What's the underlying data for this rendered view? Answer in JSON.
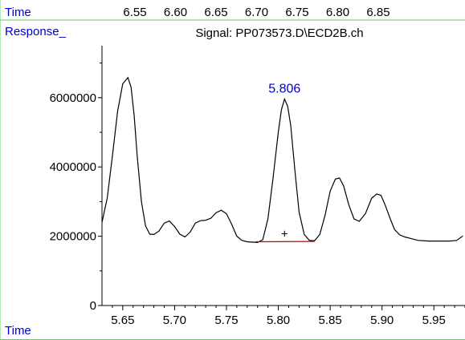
{
  "header": {
    "time_label": "Time",
    "response_label": "Response_",
    "top_ticks": [
      "6.55",
      "6.60",
      "6.65",
      "6.70",
      "6.75",
      "6.80",
      "6.85"
    ]
  },
  "colors": {
    "frame": "#66cc66",
    "label": "#0000cc",
    "trace": "#000000",
    "baseline": "#cc0000"
  },
  "chart_data": {
    "type": "line",
    "title": "Signal: PP073573.D\\ECD2B.ch",
    "xlabel": "Time",
    "ylabel": "Response_",
    "xlim": [
      5.63,
      5.98
    ],
    "ylim": [
      0,
      7500000
    ],
    "x_ticks": [
      "5.65",
      "5.70",
      "5.75",
      "5.80",
      "5.85",
      "5.90",
      "5.95"
    ],
    "y_ticks": [
      "0",
      "2000000",
      "4000000",
      "6000000"
    ],
    "peak": {
      "label": "5.806",
      "x": 5.806,
      "y": 5960000
    },
    "integration_baseline": {
      "x": [
        5.778,
        5.835
      ],
      "y": [
        1840000,
        1850000
      ]
    },
    "integration_marker": {
      "symbol": "+",
      "x": 5.806,
      "y": 2090000
    },
    "series": [
      {
        "x": [
          5.628,
          5.635,
          5.64,
          5.645,
          5.65,
          5.655,
          5.658,
          5.661,
          5.664,
          5.668,
          5.672,
          5.676,
          5.68,
          5.685,
          5.69,
          5.695,
          5.7,
          5.705,
          5.71,
          5.715,
          5.72,
          5.725,
          5.73,
          5.735,
          5.74,
          5.745,
          5.75,
          5.755,
          5.76,
          5.765,
          5.77,
          5.78,
          5.785,
          5.79,
          5.795,
          5.8,
          5.803,
          5.806,
          5.809,
          5.812,
          5.816,
          5.82,
          5.825,
          5.83,
          5.835,
          5.84,
          5.845,
          5.85,
          5.855,
          5.859,
          5.863,
          5.868,
          5.873,
          5.878,
          5.884,
          5.89,
          5.895,
          5.899,
          5.903,
          5.908,
          5.912,
          5.917,
          5.922,
          5.927,
          5.935,
          5.945,
          5.955,
          5.965,
          5.972,
          5.978
        ],
        "y": [
          2400000,
          3100000,
          4300000,
          5600000,
          6400000,
          6580000,
          6300000,
          5500000,
          4300000,
          3000000,
          2300000,
          2060000,
          2050000,
          2150000,
          2380000,
          2440000,
          2280000,
          2060000,
          1980000,
          2120000,
          2380000,
          2450000,
          2460000,
          2520000,
          2680000,
          2750000,
          2650000,
          2350000,
          2000000,
          1880000,
          1840000,
          1820000,
          1900000,
          2500000,
          3700000,
          5000000,
          5650000,
          5960000,
          5750000,
          5200000,
          3900000,
          2700000,
          2050000,
          1880000,
          1870000,
          2050000,
          2600000,
          3300000,
          3650000,
          3680000,
          3450000,
          2900000,
          2500000,
          2430000,
          2650000,
          3100000,
          3220000,
          3180000,
          2900000,
          2500000,
          2200000,
          2040000,
          1980000,
          1940000,
          1880000,
          1860000,
          1860000,
          1860000,
          1880000,
          2010000
        ]
      }
    ]
  }
}
